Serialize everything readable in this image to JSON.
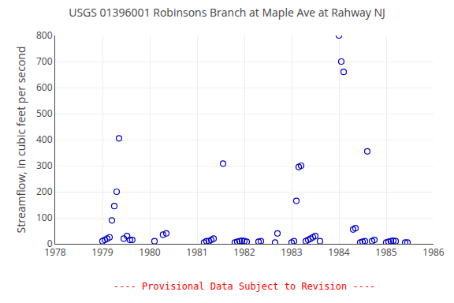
{
  "chart_data": {
    "type": "scatter",
    "title": "USGS 01396001 Robinsons Branch at Maple Ave at Rahway NJ",
    "y_label": "Streamflow, in cubic feet per second",
    "x": [
      1979.0,
      1979.05,
      1979.1,
      1979.15,
      1979.2,
      1979.25,
      1979.3,
      1979.35,
      1979.45,
      1979.52,
      1979.58,
      1979.63,
      1980.1,
      1980.28,
      1980.35,
      1981.15,
      1981.2,
      1981.25,
      1981.3,
      1981.35,
      1981.55,
      1981.8,
      1981.85,
      1981.9,
      1981.95,
      1982.0,
      1982.05,
      1982.3,
      1982.35,
      1982.65,
      1982.7,
      1983.0,
      1983.05,
      1983.1,
      1983.15,
      1983.2,
      1983.3,
      1983.35,
      1983.4,
      1983.45,
      1983.5,
      1983.6,
      1984.0,
      1984.05,
      1984.1,
      1984.3,
      1984.35,
      1984.45,
      1984.5,
      1984.55,
      1984.6,
      1984.7,
      1984.75,
      1985.0,
      1985.05,
      1985.1,
      1985.15,
      1985.2,
      1985.4,
      1985.45
    ],
    "values": [
      10,
      15,
      20,
      25,
      90,
      145,
      200,
      405,
      20,
      30,
      15,
      15,
      10,
      35,
      40,
      5,
      10,
      10,
      15,
      20,
      308,
      5,
      8,
      10,
      12,
      10,
      8,
      8,
      10,
      5,
      40,
      5,
      10,
      165,
      295,
      300,
      10,
      15,
      20,
      25,
      30,
      10,
      800,
      700,
      660,
      55,
      60,
      5,
      8,
      10,
      355,
      10,
      15,
      5,
      8,
      10,
      12,
      10,
      5,
      5
    ],
    "color": "#0000CC",
    "marker": "open circle",
    "xlim": [
      1978,
      1986
    ],
    "ylim": [
      0,
      800
    ],
    "xticks": [
      1978,
      1979,
      1980,
      1981,
      1982,
      1983,
      1984,
      1985,
      1986
    ],
    "yticks": [
      0,
      100,
      200,
      300,
      400,
      500,
      600,
      700,
      800
    ],
    "grid": true,
    "annotations": [
      {
        "text": "---- Provisional Data Subject to Revision ----",
        "color": "#ff0000"
      }
    ]
  }
}
